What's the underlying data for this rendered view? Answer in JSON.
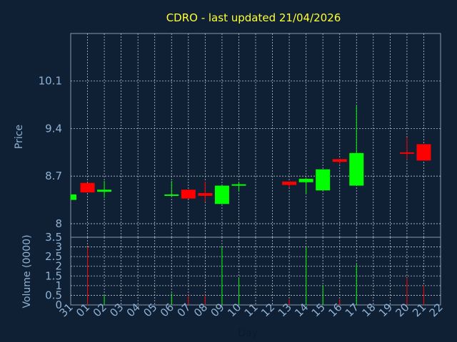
{
  "chart_data": {
    "type": "candlestick",
    "title": "CDRO - last updated 21/04/2026",
    "xlabel": "Day",
    "price_panel": {
      "ylabel": "Price",
      "yticks": [
        "8",
        "8.7",
        "9.4",
        "10.1"
      ],
      "ylim": [
        7.8,
        10.8
      ]
    },
    "volume_panel": {
      "ylabel": "Volume (0000)",
      "yticks": [
        "0",
        "0.5",
        "1",
        "1.5",
        "2",
        "2.5",
        "3",
        "3.5"
      ],
      "ylim": [
        0,
        3.5
      ]
    },
    "x_tick_labels": [
      "31",
      "01",
      "02",
      "03",
      "04",
      "05",
      "06",
      "07",
      "08",
      "09",
      "10",
      "11",
      "12",
      "13",
      "14",
      "15",
      "16",
      "17",
      "18",
      "19",
      "20",
      "21",
      "22"
    ],
    "candles": [
      {
        "day": "31",
        "open": 8.35,
        "close": 8.43,
        "high": 8.43,
        "low": 8.35,
        "volume": 0
      },
      {
        "day": "01",
        "open": 8.6,
        "close": 8.46,
        "high": 8.6,
        "low": 8.46,
        "volume": 3.0
      },
      {
        "day": "02",
        "open": 8.47,
        "close": 8.5,
        "high": 8.63,
        "low": 8.38,
        "volume": 0.5
      },
      {
        "day": "06",
        "open": 8.42,
        "close": 8.43,
        "high": 8.63,
        "low": 8.4,
        "volume": 0.6
      },
      {
        "day": "07",
        "open": 8.5,
        "close": 8.37,
        "high": 8.5,
        "low": 8.37,
        "volume": 0.5
      },
      {
        "day": "08",
        "open": 8.45,
        "close": 8.41,
        "high": 8.62,
        "low": 8.32,
        "volume": 0.5
      },
      {
        "day": "09",
        "open": 8.29,
        "close": 8.56,
        "high": 8.56,
        "low": 8.29,
        "volume": 3.0
      },
      {
        "day": "10",
        "open": 8.56,
        "close": 8.58,
        "high": 8.61,
        "low": 8.47,
        "volume": 1.4
      },
      {
        "day": "13",
        "open": 8.62,
        "close": 8.57,
        "high": 8.62,
        "low": 8.53,
        "volume": 0.3
      },
      {
        "day": "14",
        "open": 8.61,
        "close": 8.66,
        "high": 8.67,
        "low": 8.44,
        "volume": 3.0
      },
      {
        "day": "15",
        "open": 8.49,
        "close": 8.8,
        "high": 8.8,
        "low": 8.49,
        "volume": 1.0
      },
      {
        "day": "16",
        "open": 8.95,
        "close": 8.91,
        "high": 8.95,
        "low": 8.88,
        "volume": 0.3
      },
      {
        "day": "17",
        "open": 8.56,
        "close": 9.04,
        "high": 9.74,
        "low": 8.56,
        "volume": 2.1
      },
      {
        "day": "20",
        "open": 9.05,
        "close": 9.04,
        "high": 9.27,
        "low": 8.94,
        "volume": 1.4
      },
      {
        "day": "21",
        "open": 9.17,
        "close": 8.93,
        "high": 9.17,
        "low": 8.93,
        "volume": 1.0
      }
    ],
    "up_color": "#00ff00",
    "down_color": "#ff0000",
    "grid": true
  }
}
